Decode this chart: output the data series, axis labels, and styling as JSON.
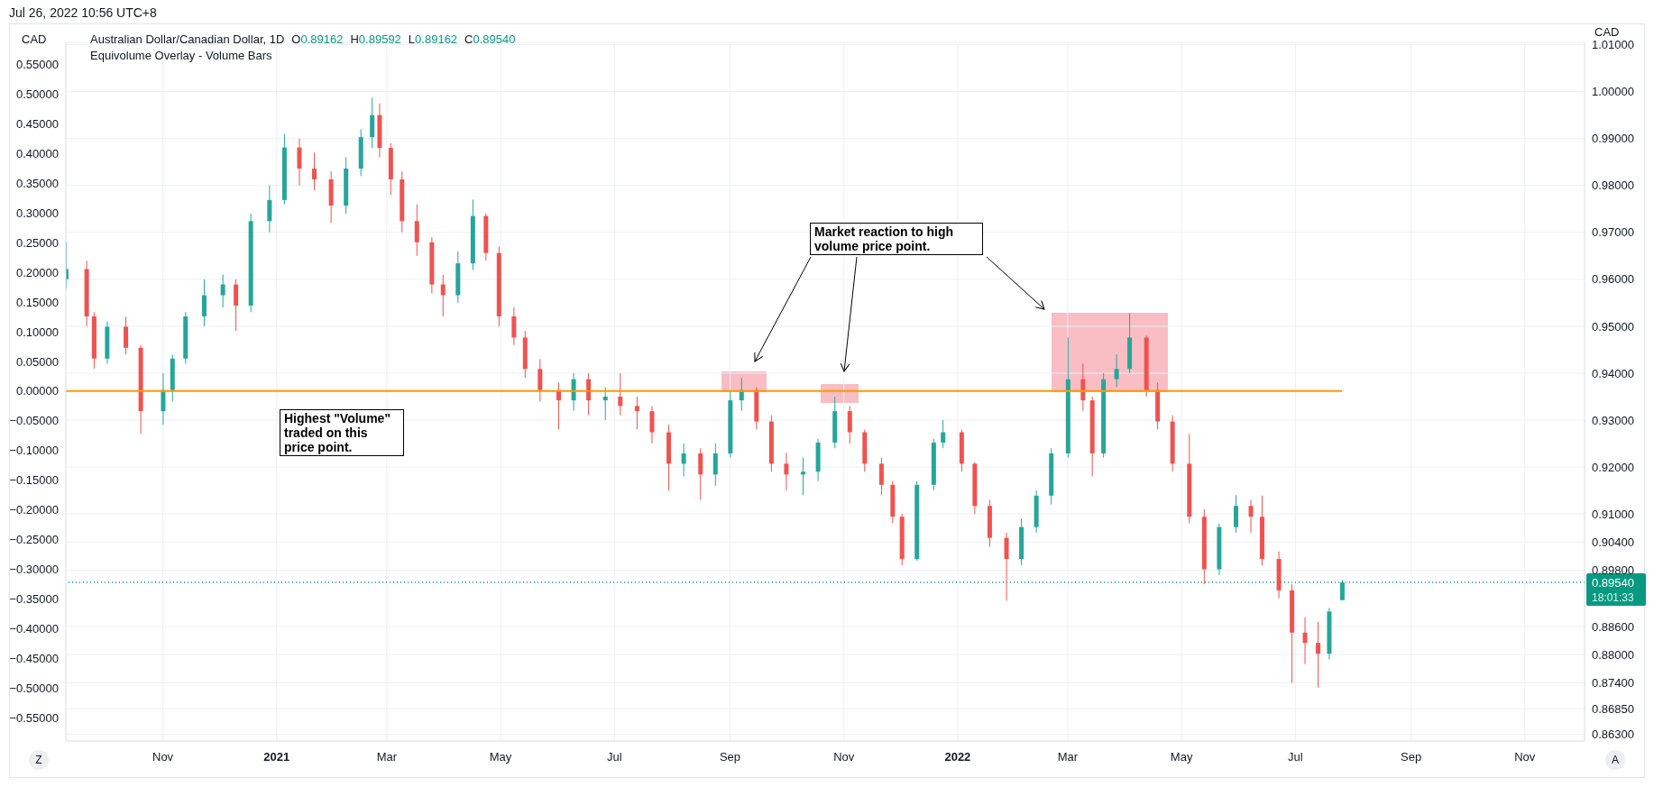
{
  "chart_data": {
    "type": "candlestick",
    "title": "Australian Dollar/Canadian Dollar, 1D",
    "subtitle": "O0.89162 H0.89592 L0.89162 C0.89540",
    "ylabel": "CAD",
    "y2label": "CAD",
    "annotations": [
      "Jul 26, 2022 10:56 UTC+8",
      "Equivolume Overlay - Volume Bars",
      "Highest \"Volume\" traded on this price point.",
      "Market reaction to high volume price point.",
      "18:01:33",
      "Z",
      "A"
    ],
    "x": [
      "2020-09-10",
      "2020-09-21",
      "2020-09-25",
      "2020-10-02",
      "2020-10-12",
      "2020-10-20",
      "2020-11-01",
      "2020-11-06",
      "2020-11-13",
      "2020-11-23",
      "2020-12-03",
      "2020-12-10",
      "2020-12-18",
      "2020-12-28",
      "2021-01-05",
      "2021-01-13",
      "2021-01-21",
      "2021-01-30",
      "2021-02-07",
      "2021-02-15",
      "2021-02-21",
      "2021-02-25",
      "2021-03-03",
      "2021-03-09",
      "2021-03-17",
      "2021-03-25",
      "2021-03-31",
      "2021-04-08",
      "2021-04-16",
      "2021-04-23",
      "2021-04-30",
      "2021-05-08",
      "2021-05-14",
      "2021-05-22",
      "2021-06-01",
      "2021-06-09",
      "2021-06-17",
      "2021-06-26",
      "2021-07-04",
      "2021-07-13",
      "2021-07-21",
      "2021-07-30",
      "2021-08-07",
      "2021-08-16",
      "2021-08-24",
      "2021-09-01",
      "2021-09-07",
      "2021-09-15",
      "2021-09-23",
      "2021-10-01",
      "2021-10-10",
      "2021-10-18",
      "2021-10-27",
      "2021-11-04",
      "2021-11-12",
      "2021-11-21",
      "2021-11-27",
      "2021-12-02",
      "2021-12-10",
      "2021-12-19",
      "2021-12-24",
      "2022-01-03",
      "2022-01-10",
      "2022-01-18",
      "2022-01-27",
      "2022-02-04",
      "2022-02-12",
      "2022-02-20",
      "2022-03-01",
      "2022-03-09",
      "2022-03-14",
      "2022-03-20",
      "2022-03-27",
      "2022-04-03",
      "2022-04-12",
      "2022-04-18",
      "2022-04-26",
      "2022-05-05",
      "2022-05-13",
      "2022-05-21",
      "2022-05-30",
      "2022-06-07",
      "2022-06-13",
      "2022-06-22",
      "2022-06-29",
      "2022-07-06",
      "2022-07-13",
      "2022-07-19",
      "2022-07-26"
    ],
    "ohlc": [
      [
        0.96,
        0.968,
        0.958,
        0.9622
      ],
      [
        0.9622,
        0.964,
        0.95,
        0.9521
      ],
      [
        0.9521,
        0.953,
        0.941,
        0.9431
      ],
      [
        0.9431,
        0.951,
        0.942,
        0.9499
      ],
      [
        0.9499,
        0.952,
        0.944,
        0.9454
      ],
      [
        0.9454,
        0.946,
        0.927,
        0.9319
      ],
      [
        0.9319,
        0.94,
        0.929,
        0.9364
      ],
      [
        0.9364,
        0.944,
        0.934,
        0.9431
      ],
      [
        0.9431,
        0.953,
        0.942,
        0.9521
      ],
      [
        0.9521,
        0.96,
        0.95,
        0.9566
      ],
      [
        0.9566,
        0.961,
        0.954,
        0.9589
      ],
      [
        0.9589,
        0.96,
        0.949,
        0.9544
      ],
      [
        0.9544,
        0.974,
        0.953,
        0.9724
      ],
      [
        0.9724,
        0.98,
        0.97,
        0.9769
      ],
      [
        0.9769,
        0.991,
        0.976,
        0.9881
      ],
      [
        0.9881,
        0.99,
        0.98,
        0.9836
      ],
      [
        0.9836,
        0.987,
        0.979,
        0.9813
      ],
      [
        0.9813,
        0.983,
        0.972,
        0.9757
      ],
      [
        0.9757,
        0.986,
        0.974,
        0.9836
      ],
      [
        0.9836,
        0.992,
        0.982,
        0.9903
      ],
      [
        0.9903,
        0.9987,
        0.988,
        0.995
      ],
      [
        0.995,
        0.9975,
        0.986,
        0.988
      ],
      [
        0.988,
        0.989,
        0.978,
        0.9813
      ],
      [
        0.9813,
        0.983,
        0.97,
        0.9724
      ],
      [
        0.9724,
        0.976,
        0.965,
        0.9679
      ],
      [
        0.9679,
        0.969,
        0.957,
        0.9589
      ],
      [
        0.9589,
        0.961,
        0.9521,
        0.9566
      ],
      [
        0.9566,
        0.966,
        0.955,
        0.9634
      ],
      [
        0.9634,
        0.977,
        0.962,
        0.9735
      ],
      [
        0.9735,
        0.974,
        0.964,
        0.9656
      ],
      [
        0.9656,
        0.967,
        0.95,
        0.9521
      ],
      [
        0.9521,
        0.954,
        0.946,
        0.9476
      ],
      [
        0.9476,
        0.949,
        0.939,
        0.9409
      ],
      [
        0.9409,
        0.943,
        0.934,
        0.9364
      ],
      [
        0.9364,
        0.938,
        0.928,
        0.9342
      ],
      [
        0.9342,
        0.94,
        0.932,
        0.9387
      ],
      [
        0.9387,
        0.94,
        0.931,
        0.9342
      ],
      [
        0.9342,
        0.937,
        0.93,
        0.935
      ],
      [
        0.935,
        0.94,
        0.931,
        0.933
      ],
      [
        0.933,
        0.935,
        0.928,
        0.9319
      ],
      [
        0.9319,
        0.933,
        0.925,
        0.9274
      ],
      [
        0.9274,
        0.929,
        0.915,
        0.9207
      ],
      [
        0.9207,
        0.925,
        0.918,
        0.9229
      ],
      [
        0.9229,
        0.924,
        0.913,
        0.9184
      ],
      [
        0.9184,
        0.925,
        0.916,
        0.9229
      ],
      [
        0.9229,
        0.936,
        0.922,
        0.9342
      ],
      [
        0.9342,
        0.939,
        0.932,
        0.9364
      ],
      [
        0.9364,
        0.937,
        0.928,
        0.9297
      ],
      [
        0.9297,
        0.931,
        0.919,
        0.9207
      ],
      [
        0.9207,
        0.923,
        0.915,
        0.9184
      ],
      [
        0.9184,
        0.922,
        0.914,
        0.919
      ],
      [
        0.919,
        0.926,
        0.917,
        0.9252
      ],
      [
        0.9252,
        0.935,
        0.924,
        0.9319
      ],
      [
        0.9319,
        0.933,
        0.925,
        0.9274
      ],
      [
        0.9274,
        0.928,
        0.919,
        0.9207
      ],
      [
        0.9207,
        0.922,
        0.914,
        0.9162
      ],
      [
        0.9162,
        0.917,
        0.908,
        0.9094
      ],
      [
        0.9094,
        0.91,
        0.899,
        0.9004
      ],
      [
        0.9004,
        0.917,
        0.9,
        0.9162
      ],
      [
        0.9162,
        0.926,
        0.915,
        0.9252
      ],
      [
        0.9252,
        0.93,
        0.924,
        0.9274
      ],
      [
        0.9274,
        0.928,
        0.919,
        0.9207
      ],
      [
        0.9207,
        0.921,
        0.91,
        0.9117
      ],
      [
        0.9117,
        0.913,
        0.903,
        0.9049
      ],
      [
        0.9049,
        0.906,
        0.8915,
        0.9004
      ],
      [
        0.9004,
        0.909,
        0.899,
        0.9072
      ],
      [
        0.9072,
        0.915,
        0.906,
        0.9139
      ],
      [
        0.9139,
        0.924,
        0.912,
        0.9229
      ],
      [
        0.9229,
        0.9476,
        0.922,
        0.9387
      ],
      [
        0.9387,
        0.942,
        0.932,
        0.9342
      ],
      [
        0.9342,
        0.935,
        0.918,
        0.9229
      ],
      [
        0.9229,
        0.94,
        0.922,
        0.9387
      ],
      [
        0.9387,
        0.944,
        0.937,
        0.9409
      ],
      [
        0.9409,
        0.9528,
        0.94,
        0.9476
      ],
      [
        0.9476,
        0.948,
        0.935,
        0.9364
      ],
      [
        0.9364,
        0.938,
        0.928,
        0.9297
      ],
      [
        0.9297,
        0.931,
        0.919,
        0.9207
      ],
      [
        0.9207,
        0.927,
        0.908,
        0.9094
      ],
      [
        0.9094,
        0.911,
        0.895,
        0.8982
      ],
      [
        0.8982,
        0.908,
        0.897,
        0.9072
      ],
      [
        0.9072,
        0.914,
        0.906,
        0.9117
      ],
      [
        0.9117,
        0.913,
        0.906,
        0.9094
      ],
      [
        0.9094,
        0.9139,
        0.899,
        0.9004
      ],
      [
        0.9004,
        0.902,
        0.892,
        0.8937
      ],
      [
        0.8937,
        0.895,
        0.874,
        0.8847
      ],
      [
        0.8847,
        0.888,
        0.878,
        0.8825
      ],
      [
        0.8825,
        0.887,
        0.873,
        0.8802
      ],
      [
        0.8802,
        0.89,
        0.879,
        0.8892
      ],
      [
        0.89162,
        0.89592,
        0.89162,
        0.8954
      ]
    ],
    "colors": [
      "#26a69a",
      "#ef5350",
      "#ef5350",
      "#26a69a",
      "#ef5350",
      "#ef5350",
      "#26a69a",
      "#26a69a",
      "#26a69a",
      "#26a69a",
      "#26a69a",
      "#ef5350",
      "#26a69a",
      "#26a69a",
      "#26a69a",
      "#ef5350",
      "#ef5350",
      "#ef5350",
      "#26a69a",
      "#26a69a",
      "#26a69a",
      "#ef5350",
      "#ef5350",
      "#ef5350",
      "#ef5350",
      "#ef5350",
      "#ef5350",
      "#26a69a",
      "#26a69a",
      "#ef5350",
      "#ef5350",
      "#ef5350",
      "#ef5350",
      "#ef5350",
      "#ef5350",
      "#26a69a",
      "#ef5350",
      "#26a69a",
      "#ef5350",
      "#ef5350",
      "#ef5350",
      "#ef5350",
      "#26a69a",
      "#ef5350",
      "#26a69a",
      "#26a69a",
      "#26a69a",
      "#ef5350",
      "#ef5350",
      "#ef5350",
      "#26a69a",
      "#26a69a",
      "#26a69a",
      "#ef5350",
      "#ef5350",
      "#ef5350",
      "#ef5350",
      "#ef5350",
      "#26a69a",
      "#26a69a",
      "#26a69a",
      "#ef5350",
      "#ef5350",
      "#ef5350",
      "#ef5350",
      "#26a69a",
      "#26a69a",
      "#26a69a",
      "#26a69a",
      "#ef5350",
      "#ef5350",
      "#26a69a",
      "#26a69a",
      "#26a69a",
      "#ef5350",
      "#ef5350",
      "#ef5350",
      "#ef5350",
      "#ef5350",
      "#26a69a",
      "#26a69a",
      "#ef5350",
      "#ef5350",
      "#ef5350",
      "#ef5350",
      "#ef5350",
      "#ef5350",
      "#26a69a",
      "#26a69a"
    ],
    "xlim": [
      "2020-09-10",
      "2022-12-03"
    ],
    "xticks": [
      {
        "value": "2020-11-01",
        "label": "Nov"
      },
      {
        "value": "2021-01-01",
        "label": "2021"
      },
      {
        "value": "2021-03-01",
        "label": "Mar"
      },
      {
        "value": "2021-05-01",
        "label": "May"
      },
      {
        "value": "2021-07-01",
        "label": "Jul"
      },
      {
        "value": "2021-09-01",
        "label": "Sep"
      },
      {
        "value": "2021-11-01",
        "label": "Nov"
      },
      {
        "value": "2022-01-01",
        "label": "2022"
      },
      {
        "value": "2022-03-01",
        "label": "Mar"
      },
      {
        "value": "2022-05-01",
        "label": "May"
      },
      {
        "value": "2022-07-01",
        "label": "Jul"
      },
      {
        "value": "2022-09-01",
        "label": "Sep"
      },
      {
        "value": "2022-11-01",
        "label": "Nov"
      }
    ],
    "y2lim": [
      -0.589,
      0.587
    ],
    "y2ticks": [
      {
        "value": 0.55,
        "label": "0.55000"
      },
      {
        "value": 0.5,
        "label": "0.50000"
      },
      {
        "value": 0.45,
        "label": "0.45000"
      },
      {
        "value": 0.4,
        "label": "0.40000"
      },
      {
        "value": 0.35,
        "label": "0.35000"
      },
      {
        "value": 0.3,
        "label": "0.30000"
      },
      {
        "value": 0.25,
        "label": "0.25000"
      },
      {
        "value": 0.2,
        "label": "0.20000"
      },
      {
        "value": 0.15,
        "label": "0.15000"
      },
      {
        "value": 0.1,
        "label": "0.10000"
      },
      {
        "value": 0.05,
        "label": "0.05000"
      },
      {
        "value": 0,
        "label": "0.00000"
      },
      {
        "value": -0.05,
        "label": "−0.05000"
      },
      {
        "value": -0.1,
        "label": "−0.10000"
      },
      {
        "value": -0.15,
        "label": "−0.15000"
      },
      {
        "value": -0.2,
        "label": "−0.20000"
      },
      {
        "value": -0.25,
        "label": "−0.25000"
      },
      {
        "value": -0.3,
        "label": "−0.30000"
      },
      {
        "value": -0.35,
        "label": "−0.35000"
      },
      {
        "value": -0.4,
        "label": "−0.40000"
      },
      {
        "value": -0.45,
        "label": "−0.45000"
      },
      {
        "value": -0.5,
        "label": "−0.50000"
      },
      {
        "value": -0.55,
        "label": "−0.55000"
      }
    ],
    "ylim": [
      0.8616,
      1.0105
    ],
    "yticks": [
      {
        "value": 1.01,
        "label": "1.01000"
      },
      {
        "value": 1.0,
        "label": "1.00000"
      },
      {
        "value": 0.99,
        "label": "0.99000"
      },
      {
        "value": 0.98,
        "label": "0.98000"
      },
      {
        "value": 0.97,
        "label": "0.97000"
      },
      {
        "value": 0.96,
        "label": "0.96000"
      },
      {
        "value": 0.95,
        "label": "0.95000"
      },
      {
        "value": 0.94,
        "label": "0.94000"
      },
      {
        "value": 0.93,
        "label": "0.93000"
      },
      {
        "value": 0.92,
        "label": "0.92000"
      },
      {
        "value": 0.91,
        "label": "0.91000"
      },
      {
        "value": 0.904,
        "label": "0.90400"
      },
      {
        "value": 0.898,
        "label": "0.89800"
      },
      {
        "value": 0.886,
        "label": "0.88600"
      },
      {
        "value": 0.88,
        "label": "0.88000"
      },
      {
        "value": 0.874,
        "label": "0.87400"
      },
      {
        "value": 0.8685,
        "label": "0.86850"
      },
      {
        "value": 0.863,
        "label": "0.86300"
      }
    ],
    "grid": true,
    "ref_lines": [
      {
        "axis": "y2",
        "value": 0,
        "color": "#ff9800",
        "line_style": "solid"
      },
      {
        "axis": "y",
        "value": 0.8954,
        "label": "0.89540",
        "color": "#089981",
        "line_style": "dotted"
      }
    ]
  }
}
